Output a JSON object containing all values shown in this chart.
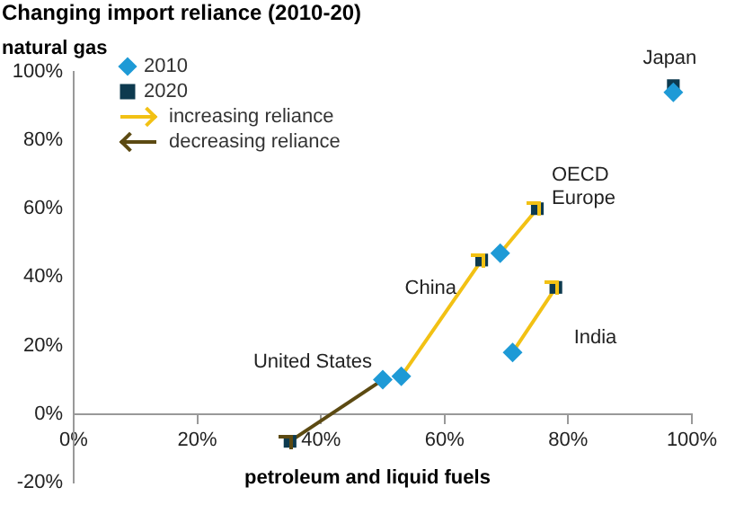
{
  "chart_data": {
    "type": "scatter",
    "title": "Changing import reliance (2010-20)",
    "xlabel": "petroleum and liquid fuels",
    "ylabel": "natural gas",
    "series": [
      {
        "name": "2010",
        "color": "#1e9ad6",
        "marker": "diamond",
        "x": [
          50,
          53,
          69,
          71,
          97
        ],
        "values": [
          10,
          11,
          47,
          18,
          94
        ]
      },
      {
        "name": "2020",
        "color": "#0d3a4f",
        "marker": "square",
        "x": [
          35,
          66,
          75,
          78,
          97
        ],
        "values": [
          -8,
          45,
          60,
          37,
          96
        ]
      },
      {
        "name": "increasing reliance",
        "type": "line",
        "color": "#f2c114",
        "x": [
          53,
          66,
          null,
          69,
          75,
          null,
          71,
          78
        ],
        "values": [
          11,
          45,
          null,
          47,
          60,
          null,
          18,
          37
        ]
      },
      {
        "name": "decreasing reliance",
        "type": "line",
        "color": "#5c4a12",
        "x": [
          50,
          35
        ],
        "values": [
          10,
          -8
        ]
      }
    ],
    "annotations": [
      {
        "text": "Japan",
        "x": 97,
        "y": 96
      },
      {
        "text": "OECD Europe",
        "x": 75,
        "y": 60
      },
      {
        "text": "China",
        "x": 66,
        "y": 45
      },
      {
        "text": "United States",
        "x": 50,
        "y": 10
      },
      {
        "text": "India",
        "x": 78,
        "y": 37
      }
    ],
    "xlim": [
      0,
      100
    ],
    "ylim": [
      -20,
      100
    ],
    "xticks": [
      {
        "value": 0,
        "label": "0%"
      },
      {
        "value": 20,
        "label": "20%"
      },
      {
        "value": 40,
        "label": "40%"
      },
      {
        "value": 60,
        "label": "60%"
      },
      {
        "value": 80,
        "label": "80%"
      },
      {
        "value": 100,
        "label": "100%"
      }
    ],
    "yticks": [
      {
        "value": -20,
        "label": "-20%"
      },
      {
        "value": 0,
        "label": "0%"
      },
      {
        "value": 20,
        "label": "20%"
      },
      {
        "value": 40,
        "label": "40%"
      },
      {
        "value": 60,
        "label": "60%"
      },
      {
        "value": 80,
        "label": "80%"
      },
      {
        "value": 100,
        "label": "100%"
      }
    ],
    "grid": false,
    "legend": "top left"
  }
}
